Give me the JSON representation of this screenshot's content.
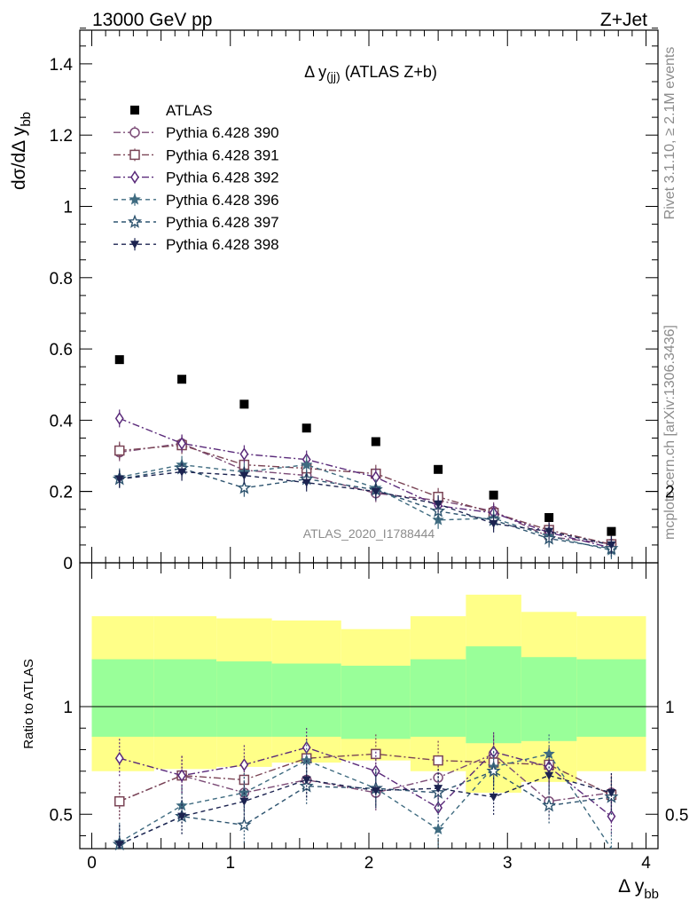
{
  "header": {
    "left": "13000 GeV pp",
    "right": "Z+Jet"
  },
  "side": {
    "rivet": "Rivet 3.1.10, ≥ 2.1M events",
    "mcplots": "mcplots.cern.ch [arXiv:1306.3436]"
  },
  "chart_data": {
    "type": "scatter",
    "title": "Δ y(jj) (ATLAS Z+b)",
    "analysis_label": "ATLAS_2020_I1788444",
    "ylabel_main": "dσ/dΔ y",
    "ylabel_main_sub": "bb",
    "ylabel_ratio": "Ratio to ATLAS",
    "xlabel": "Δ y",
    "xlabel_sub": "bb",
    "xlim": [
      -0.1,
      4.1
    ],
    "ylim_main": [
      0,
      1.5
    ],
    "ylim_ratio": [
      0.35,
      2.3
    ],
    "x": [
      0.2,
      0.65,
      1.1,
      1.55,
      2.05,
      2.5,
      2.9,
      3.3,
      3.75
    ],
    "bin_edges": [
      0,
      0.45,
      0.9,
      1.3,
      1.8,
      2.3,
      2.7,
      3.1,
      3.5,
      4.0
    ],
    "data": {
      "name": "ATLAS",
      "values": [
        0.57,
        0.515,
        0.445,
        0.378,
        0.34,
        0.262,
        0.19,
        0.127,
        0.088
      ],
      "band_inner_low": [
        0.86,
        0.86,
        0.86,
        0.86,
        0.85,
        0.86,
        0.83,
        0.84,
        0.86
      ],
      "band_inner_high": [
        1.22,
        1.22,
        1.21,
        1.2,
        1.19,
        1.22,
        1.28,
        1.23,
        1.22
      ],
      "band_outer_low": [
        0.7,
        0.71,
        0.72,
        0.74,
        0.75,
        0.7,
        0.6,
        0.65,
        0.7
      ],
      "band_outer_high": [
        1.42,
        1.42,
        1.41,
        1.4,
        1.36,
        1.42,
        1.52,
        1.44,
        1.42
      ]
    },
    "series": [
      {
        "name": "Pythia 6.428 390",
        "color": "#7b4b76",
        "marker": "circle-open",
        "dash": "8,3,2,3",
        "values": [
          0.31,
          0.335,
          0.26,
          0.245,
          0.195,
          0.175,
          0.145,
          0.073,
          0.053
        ],
        "ratio": [
          0.56,
          0.68,
          0.6,
          0.66,
          0.6,
          0.67,
          0.78,
          0.56,
          0.6
        ]
      },
      {
        "name": "Pythia 6.428 391",
        "color": "#7a4455",
        "marker": "square-open",
        "dash": "8,3,2,3",
        "values": [
          0.315,
          0.33,
          0.275,
          0.265,
          0.25,
          0.185,
          0.14,
          0.092,
          0.052
        ],
        "ratio": [
          0.56,
          0.68,
          0.66,
          0.76,
          0.78,
          0.75,
          0.74,
          0.73,
          0.59
        ]
      },
      {
        "name": "Pythia 6.428 392",
        "color": "#5a2a7a",
        "marker": "diamond-open",
        "dash": "8,3,2,3",
        "values": [
          0.405,
          0.335,
          0.305,
          0.29,
          0.24,
          0.16,
          0.14,
          0.085,
          0.042
        ],
        "ratio": [
          0.76,
          0.68,
          0.73,
          0.81,
          0.7,
          0.53,
          0.79,
          0.72,
          0.49
        ]
      },
      {
        "name": "Pythia 6.428 396",
        "color": "#3f6b80",
        "marker": "star-filled",
        "dash": "5,4",
        "values": [
          0.24,
          0.275,
          0.255,
          0.275,
          0.21,
          0.12,
          0.125,
          0.075,
          0.035
        ],
        "ratio": [
          0.37,
          0.54,
          0.6,
          0.75,
          0.62,
          0.43,
          0.72,
          0.78,
          0.33
        ]
      },
      {
        "name": "Pythia 6.428 397",
        "color": "#2f5570",
        "marker": "star-open",
        "dash": "5,4",
        "values": [
          0.235,
          0.265,
          0.21,
          0.235,
          0.205,
          0.145,
          0.12,
          0.068,
          0.04
        ],
        "ratio": [
          0.36,
          0.49,
          0.45,
          0.63,
          0.62,
          0.6,
          0.7,
          0.54,
          0.58
        ]
      },
      {
        "name": "Pythia 6.428 398",
        "color": "#1c2350",
        "marker": "triangle-down-filled",
        "dash": "5,4",
        "values": [
          0.235,
          0.255,
          0.245,
          0.225,
          0.2,
          0.165,
          0.11,
          0.088,
          0.05
        ],
        "ratio": [
          0.36,
          0.49,
          0.56,
          0.66,
          0.61,
          0.62,
          0.58,
          0.68,
          0.6
        ]
      }
    ],
    "ticks_main": [
      "0",
      "0.2",
      "0.4",
      "0.6",
      "0.8",
      "1",
      "1.2",
      "1.4"
    ],
    "ticks_ratio": [
      "0.5",
      "1",
      "2"
    ],
    "ticks_x": [
      "0",
      "1",
      "2",
      "3",
      "4"
    ],
    "band_colors": {
      "inner": "#99ff99",
      "outer": "#ffff88"
    }
  }
}
